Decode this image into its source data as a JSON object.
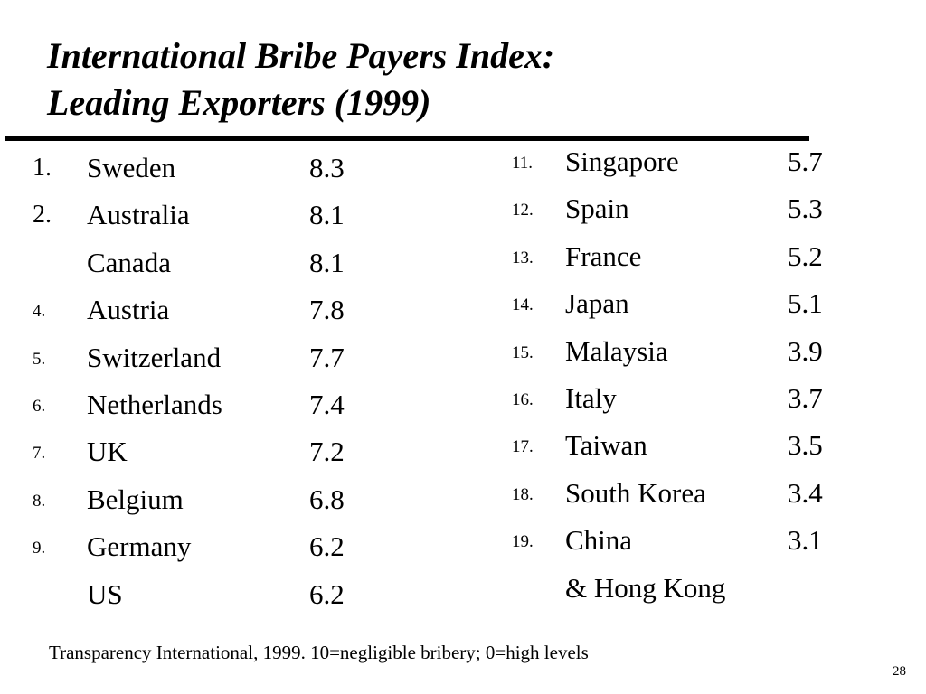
{
  "slide": {
    "title_line1": "International Bribe Payers Index:",
    "title_line2": "Leading Exporters (1999)",
    "page_number": "28",
    "source_note": "Transparency International, 1999.  10=negligible bribery; 0=high levels"
  },
  "left_list": [
    {
      "rank": "1.",
      "country": "Sweden",
      "score": "8.3",
      "rank_style": "big"
    },
    {
      "rank": "2.",
      "country": "Australia",
      "score": "8.1",
      "rank_style": "big"
    },
    {
      "rank": "",
      "country": "Canada",
      "score": "8.1",
      "rank_style": "big"
    },
    {
      "rank": "4.",
      "country": "Austria",
      "score": "7.8",
      "rank_style": "small"
    },
    {
      "rank": "5.",
      "country": "Switzerland",
      "score": "7.7",
      "rank_style": "small"
    },
    {
      "rank": "6.",
      "country": "Netherlands",
      "score": "7.4",
      "rank_style": "small"
    },
    {
      "rank": "7.",
      "country": "UK",
      "score": "7.2",
      "rank_style": "small"
    },
    {
      "rank": "8.",
      "country": "Belgium",
      "score": "6.8",
      "rank_style": "small"
    },
    {
      "rank": "9.",
      "country": "Germany",
      "score": "6.2",
      "rank_style": "small"
    },
    {
      "rank": "",
      "country": "US",
      "score": "6.2",
      "rank_style": "small"
    }
  ],
  "right_list": [
    {
      "rank": "11.",
      "country": "Singapore",
      "score": "5.7",
      "rank_style": "small"
    },
    {
      "rank": "12.",
      "country": "Spain",
      "score": "5.3",
      "rank_style": "small"
    },
    {
      "rank": "13.",
      "country": "France",
      "score": "5.2",
      "rank_style": "small"
    },
    {
      "rank": "14.",
      "country": "Japan",
      "score": "5.1",
      "rank_style": "small"
    },
    {
      "rank": "15.",
      "country": "Malaysia",
      "score": "3.9",
      "rank_style": "small"
    },
    {
      "rank": "16.",
      "country": "Italy",
      "score": "3.7",
      "rank_style": "small"
    },
    {
      "rank": "17.",
      "country": "Taiwan",
      "score": "3.5",
      "rank_style": "small"
    },
    {
      "rank": "18.",
      "country": "South Korea",
      "score": "3.4",
      "rank_style": "small"
    },
    {
      "rank": "19.",
      "country": "China",
      "score": "3.1",
      "rank_style": "small"
    },
    {
      "rank": "",
      "country": "& Hong Kong",
      "score": "",
      "rank_style": "small"
    }
  ]
}
